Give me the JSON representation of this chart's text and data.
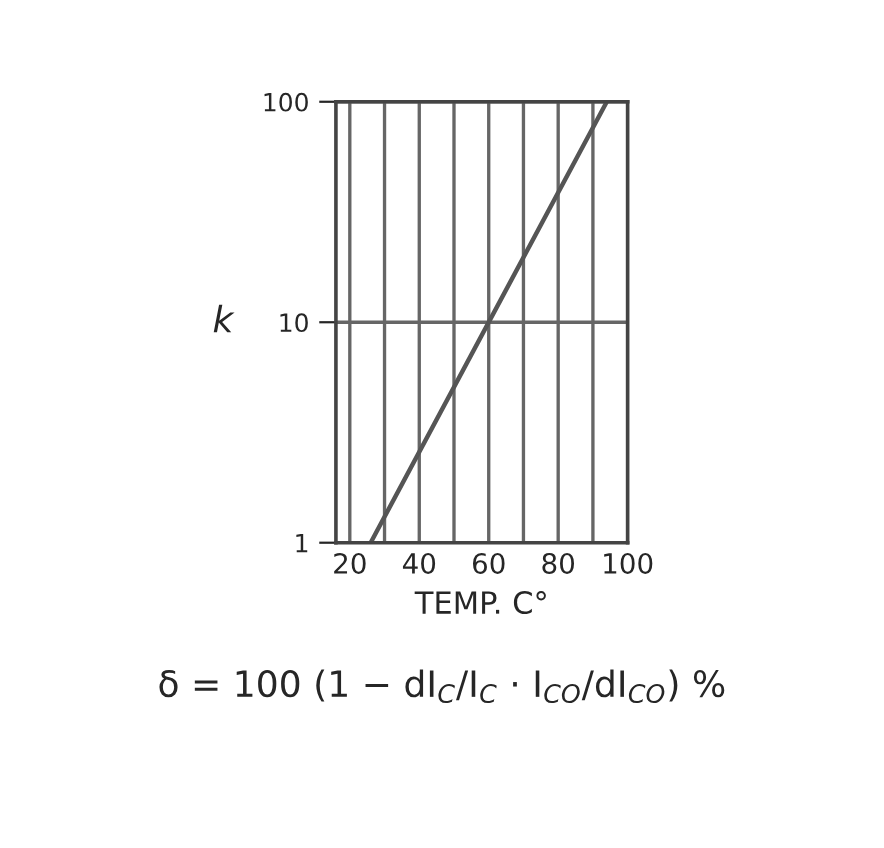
{
  "chart_data": {
    "type": "line",
    "xlabel": "TEMP. C°",
    "ylabel": "k",
    "x": [
      26,
      94
    ],
    "series": [
      {
        "color": "#555555",
        "values": [
          1,
          100
        ]
      }
    ],
    "log": "y",
    "xlim": [
      16,
      100
    ],
    "ylim": [
      1,
      100
    ],
    "xticks": [
      20,
      {
        "value": 30,
        "label": null
      },
      40,
      {
        "value": 50,
        "label": null
      },
      60,
      {
        "value": 70,
        "label": null
      },
      80,
      {
        "value": 90,
        "label": null
      },
      100
    ],
    "yticks": [
      1,
      10,
      100
    ],
    "grid": true,
    "marker": "none",
    "line_style": "solid",
    "annotations": [
      "δ = 100 (1 − dI$_{C}$/I$_{C}$ · I$_{CO}$/dI$_{CO}$) %"
    ]
  }
}
